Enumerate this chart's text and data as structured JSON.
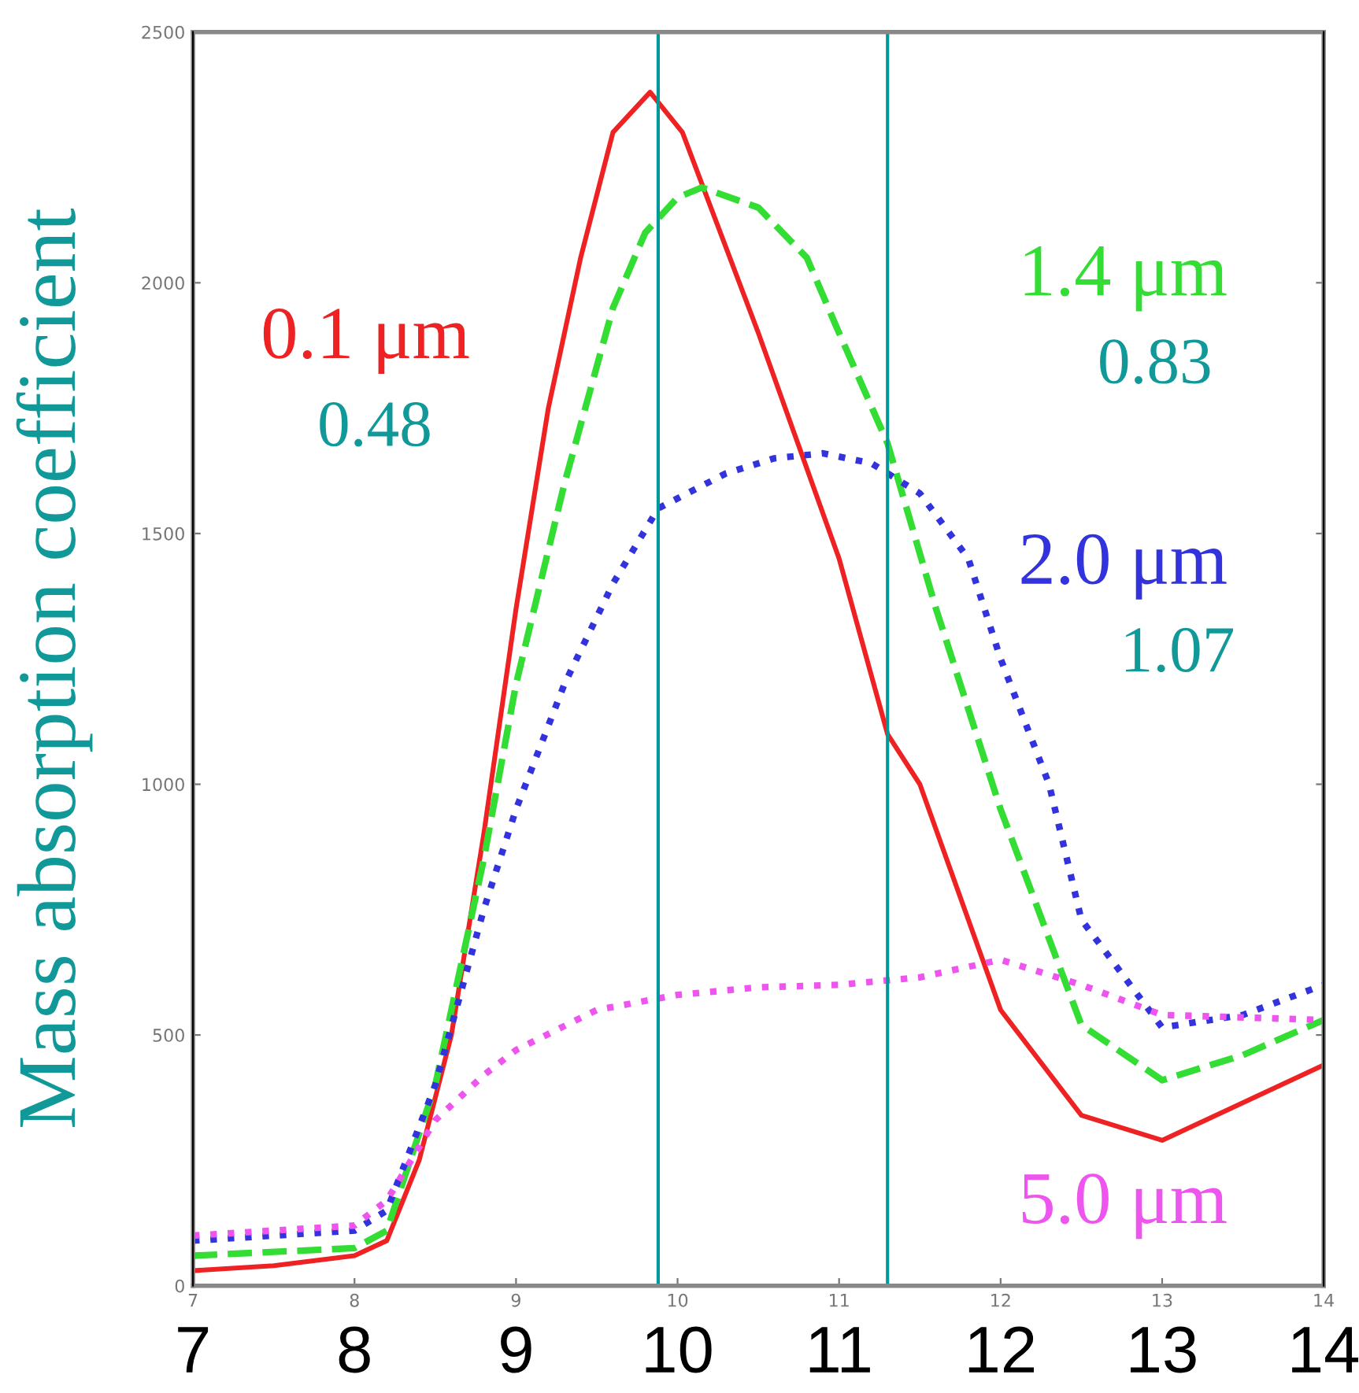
{
  "chart_data": {
    "type": "line",
    "ylabel": "Mass absorption coefficient",
    "xlim": [
      7,
      14
    ],
    "xticks": [
      7,
      8,
      9,
      10,
      11,
      12,
      13,
      14
    ],
    "x2lim": [
      7,
      14
    ],
    "x2ticks": [
      7,
      8,
      9,
      10,
      11,
      12,
      13,
      14
    ],
    "ylim": [
      0,
      2500
    ],
    "yticks": [
      0,
      500,
      1000,
      1500,
      2000,
      2500
    ],
    "grid": false,
    "legend": false,
    "ref_lines": [
      {
        "axis": "x",
        "value": 9.88,
        "color": "#009999"
      },
      {
        "axis": "x",
        "value": 11.3,
        "color": "#009999"
      }
    ],
    "annotations": [
      "0.48",
      "0.83",
      "1.07"
    ],
    "series": [
      {
        "name": "0.1 μm",
        "color": "#ee2222",
        "line_style": "solid",
        "x": [
          7,
          7.5,
          8,
          8.2,
          8.4,
          8.6,
          8.8,
          9,
          9.2,
          9.4,
          9.6,
          9.83,
          10.03,
          10.5,
          11,
          11.3,
          11.5,
          12,
          12.5,
          13,
          14
        ],
        "values": [
          30,
          40,
          60,
          90,
          250,
          500,
          900,
          1350,
          1750,
          2050,
          2300,
          2380,
          2300,
          1900,
          1450,
          1100,
          1000,
          550,
          340,
          290,
          440
        ]
      },
      {
        "name": "1.4 μm",
        "color": "#33dd33",
        "line_style": "dashed",
        "x": [
          7,
          8,
          8.2,
          8.5,
          8.8,
          9,
          9.3,
          9.6,
          9.8,
          10,
          10.15,
          10.5,
          10.8,
          11,
          11.3,
          11.6,
          12,
          12.5,
          13,
          13.5,
          14
        ],
        "values": [
          60,
          75,
          110,
          400,
          850,
          1200,
          1600,
          1950,
          2100,
          2170,
          2190,
          2150,
          2050,
          1900,
          1680,
          1350,
          950,
          520,
          410,
          460,
          530
        ]
      },
      {
        "name": "2.0 μm",
        "color": "#3333dd",
        "line_style": "dotted",
        "x": [
          7,
          8,
          8.2,
          8.5,
          8.8,
          9,
          9.3,
          9.6,
          9.88,
          10,
          10.3,
          10.6,
          10.9,
          11.2,
          11.5,
          11.8,
          12,
          12.3,
          12.5,
          13,
          13.5,
          14
        ],
        "values": [
          90,
          110,
          150,
          400,
          750,
          950,
          1200,
          1400,
          1550,
          1570,
          1620,
          1650,
          1660,
          1640,
          1580,
          1450,
          1250,
          1000,
          730,
          515,
          540,
          600
        ]
      },
      {
        "name": "5.0 μm",
        "color": "#ee55ee",
        "line_style": "dotted",
        "x": [
          7,
          8,
          8.2,
          8.5,
          8.8,
          9,
          9.5,
          10,
          10.5,
          11,
          11.5,
          12,
          12.5,
          13,
          14
        ],
        "values": [
          100,
          120,
          170,
          330,
          420,
          470,
          550,
          580,
          595,
          600,
          615,
          650,
          600,
          540,
          530
        ]
      }
    ]
  }
}
